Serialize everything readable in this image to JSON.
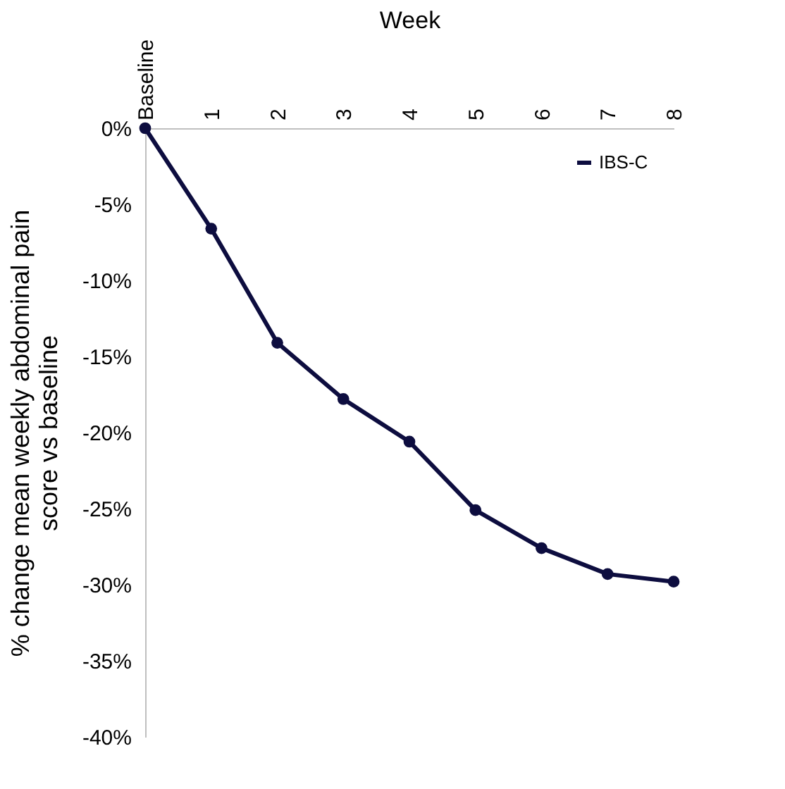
{
  "chart_data": {
    "type": "line",
    "xlabel": "Week",
    "ylabel": [
      "% change mean weekly abdominal pain",
      "score vs baseline"
    ],
    "categories": [
      "Baseline",
      "1",
      "2",
      "3",
      "4",
      "5",
      "6",
      "7",
      "8"
    ],
    "series": [
      {
        "name": "IBS-C",
        "color": "#0d0d3f",
        "values": [
          0,
          -6.6,
          -14.1,
          -17.8,
          -20.6,
          -25.1,
          -27.6,
          -29.3,
          -29.8
        ]
      }
    ],
    "ylim": [
      -40,
      0
    ],
    "yticks": [
      {
        "value": 0,
        "label": "0%"
      },
      {
        "value": -5,
        "label": "-5%"
      },
      {
        "value": -10,
        "label": "-10%"
      },
      {
        "value": -15,
        "label": "-15%"
      },
      {
        "value": -20,
        "label": "-20%"
      },
      {
        "value": -25,
        "label": "-25%"
      },
      {
        "value": -30,
        "label": "-30%"
      },
      {
        "value": -35,
        "label": "-35%"
      },
      {
        "value": -40,
        "label": "-40%"
      }
    ],
    "grid": false,
    "legend": "top right",
    "marker": "circle",
    "line_style": "solid"
  }
}
